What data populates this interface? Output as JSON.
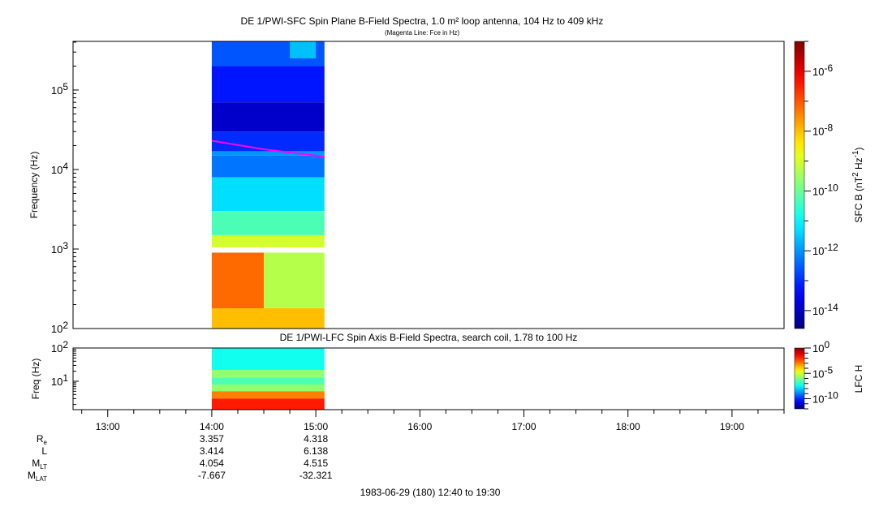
{
  "chart_data": [
    {
      "type": "heatmap",
      "title": "DE 1/PWI-SFC  Spin Plane B-Field Spectra, 1.0 m² loop antenna, 104 Hz to 409 kHz",
      "subtitle": "(Magenta Line: Fce in Hz)",
      "ylabel": "Frequency (Hz)",
      "yscale": "log",
      "ylim": [
        100,
        409000
      ],
      "yticks": [
        {
          "base": "10",
          "exp": "2",
          "value": 100
        },
        {
          "base": "10",
          "exp": "3",
          "value": 1000
        },
        {
          "base": "10",
          "exp": "4",
          "value": 10000
        },
        {
          "base": "10",
          "exp": "5",
          "value": 100000
        }
      ],
      "colorbar": {
        "label_main": "SFC B (nT",
        "label_exp1": "2",
        "label_mid": " Hz",
        "label_exp2": "-1",
        "label_end": ")",
        "range_log10": [
          -14.6,
          -5
        ],
        "ticks": [
          {
            "base": "10",
            "exp": "-6",
            "value": -6
          },
          {
            "base": "10",
            "exp": "-8",
            "value": -8
          },
          {
            "base": "10",
            "exp": "-10",
            "value": -10
          },
          {
            "base": "10",
            "exp": "-12",
            "value": -12
          },
          {
            "base": "10",
            "exp": "-14",
            "value": -14
          }
        ]
      },
      "cells_log10": [
        {
          "t": [
            14.0,
            15.083
          ],
          "f": [
            100,
            180
          ],
          "v": -8.0
        },
        {
          "t": [
            14.0,
            15.083
          ],
          "f": [
            180,
            900
          ],
          "v": -9.3
        },
        {
          "t": [
            14.0,
            14.5
          ],
          "f": [
            180,
            900
          ],
          "v": -7.2
        },
        {
          "t": [
            14.0,
            15.083
          ],
          "f": [
            1050,
            1500
          ],
          "v": -9.0
        },
        {
          "t": [
            14.0,
            15.083
          ],
          "f": [
            1500,
            3000
          ],
          "v": -10.3
        },
        {
          "t": [
            14.0,
            15.083
          ],
          "f": [
            3000,
            8000
          ],
          "v": -11.3
        },
        {
          "t": [
            14.0,
            15.083
          ],
          "f": [
            8000,
            15000
          ],
          "v": -12.3
        },
        {
          "t": [
            14.0,
            15.083
          ],
          "f": [
            15000,
            17000
          ],
          "v": -12.0
        },
        {
          "t": [
            14.0,
            15.083
          ],
          "f": [
            17000,
            30000
          ],
          "v": -13.0
        },
        {
          "t": [
            14.0,
            15.083
          ],
          "f": [
            30000,
            70000
          ],
          "v": -13.9
        },
        {
          "t": [
            14.0,
            15.083
          ],
          "f": [
            70000,
            200000
          ],
          "v": -13.2
        },
        {
          "t": [
            14.0,
            15.083
          ],
          "f": [
            200000,
            409000
          ],
          "v": -12.6
        },
        {
          "t": [
            14.75,
            15.0
          ],
          "f": [
            250000,
            409000
          ],
          "v": -11.6
        }
      ],
      "fce_line": {
        "color": "#ff00ff",
        "t": [
          14.0,
          14.5,
          15.083
        ],
        "f": [
          23000,
          18000,
          14500
        ]
      }
    },
    {
      "type": "heatmap",
      "title": "DE 1/PWI-LFC  Spin Axis B-Field Spectra, search coil, 1.78 to 100 Hz",
      "ylabel": "Freq (Hz)",
      "yscale": "log",
      "ylim": [
        1.4,
        100
      ],
      "yticks": [
        {
          "base": "10",
          "exp": "1",
          "value": 10
        },
        {
          "base": "10",
          "exp": "2",
          "value": 100
        }
      ],
      "colorbar": {
        "label_main": "LFC H",
        "range_log10": [
          -12,
          0
        ],
        "ticks": [
          {
            "base": "10",
            "exp": "0",
            "value": 0
          },
          {
            "base": "10",
            "exp": "-5",
            "value": -5
          },
          {
            "base": "10",
            "exp": "-10",
            "value": -10
          }
        ]
      },
      "cells_log10": [
        {
          "t": [
            14.0,
            15.083
          ],
          "f": [
            22,
            100
          ],
          "v": -7.3
        },
        {
          "t": [
            14.0,
            15.083
          ],
          "f": [
            13,
            22
          ],
          "v": -5.8
        },
        {
          "t": [
            14.0,
            15.083
          ],
          "f": [
            8,
            13
          ],
          "v": -6.6
        },
        {
          "t": [
            14.0,
            15.083
          ],
          "f": [
            5,
            8
          ],
          "v": -5.8
        },
        {
          "t": [
            14.0,
            15.083
          ],
          "f": [
            3,
            5
          ],
          "v": -3.0
        },
        {
          "t": [
            14.0,
            15.083
          ],
          "f": [
            1.4,
            3
          ],
          "v": -1.8
        }
      ]
    }
  ],
  "time_axis": {
    "range_hours": [
      12.6667,
      19.5
    ],
    "ticks": [
      {
        "label": "13:00",
        "h": 13
      },
      {
        "label": "14:00",
        "h": 14
      },
      {
        "label": "15:00",
        "h": 15
      },
      {
        "label": "16:00",
        "h": 16
      },
      {
        "label": "17:00",
        "h": 17
      },
      {
        "label": "18:00",
        "h": 18
      },
      {
        "label": "19:00",
        "h": 19
      }
    ]
  },
  "ephemeris": {
    "rows": [
      {
        "label": "R",
        "sub": "e",
        "values": [
          "3.357",
          "4.318"
        ]
      },
      {
        "label": "L",
        "sub": "",
        "values": [
          "3.414",
          "6.138"
        ]
      },
      {
        "label": "M",
        "sub": "LT",
        "values": [
          "4.054",
          "4.515"
        ]
      },
      {
        "label": "M",
        "sub": "LAT",
        "values": [
          "-7.667",
          "-32.321"
        ]
      }
    ],
    "value_hours": [
      14,
      15
    ]
  },
  "footer": "1983-06-29 (180) 12:40 to 19:30"
}
